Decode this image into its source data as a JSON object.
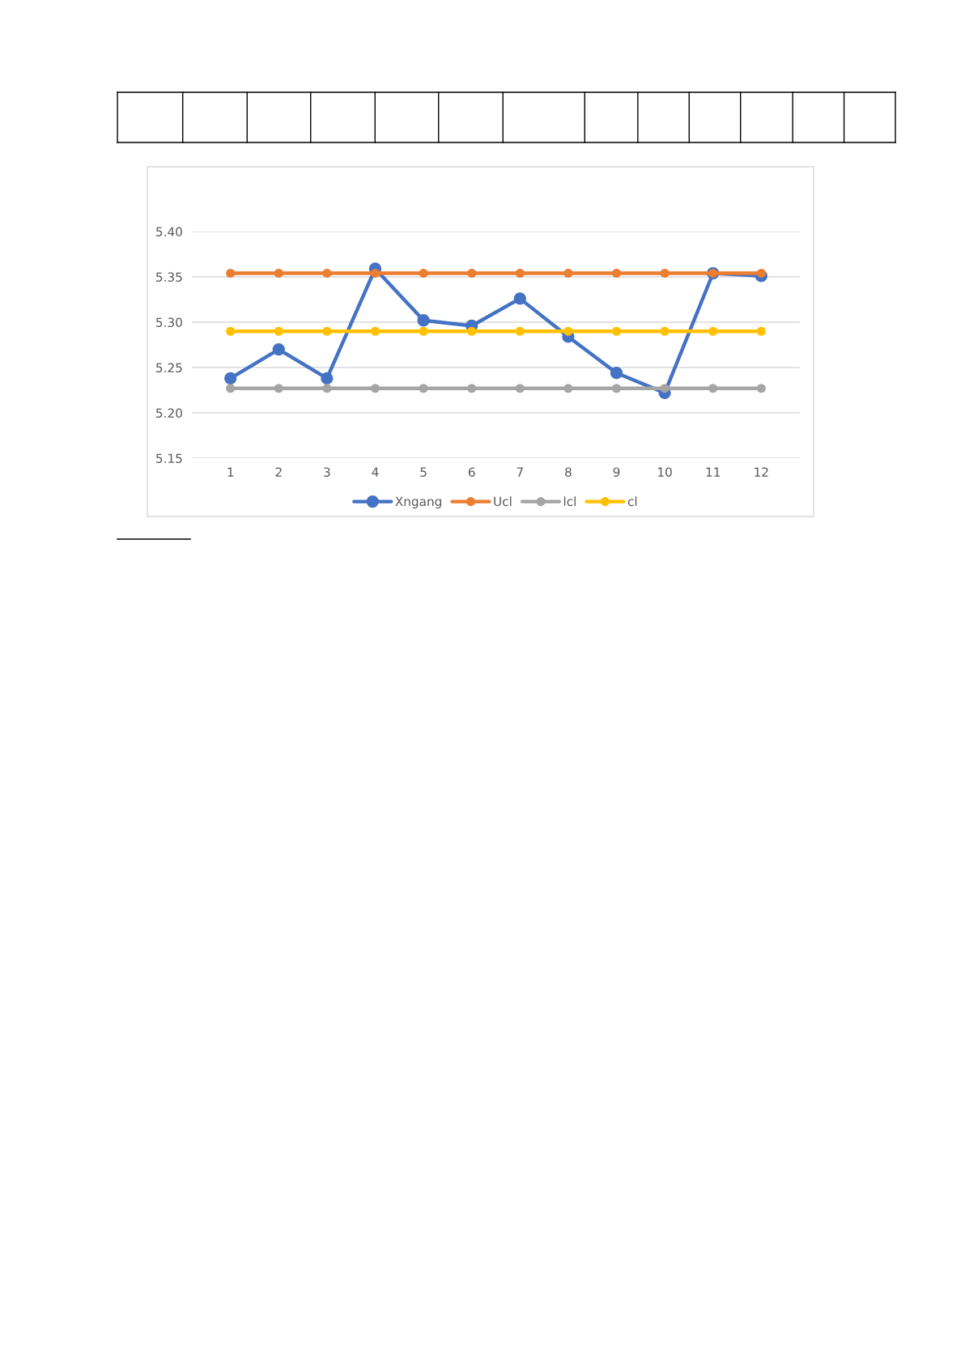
{
  "chart_data": {
    "type": "line",
    "categories": [
      "1",
      "2",
      "3",
      "4",
      "5",
      "6",
      "7",
      "8",
      "9",
      "10",
      "11",
      "12"
    ],
    "series": [
      {
        "name": "Xngang",
        "color": "#4472c4",
        "values": [
          5.238,
          5.27,
          5.238,
          5.359,
          5.302,
          5.296,
          5.326,
          5.284,
          5.244,
          5.222,
          5.354,
          5.351
        ]
      },
      {
        "name": "Ucl",
        "color": "#ed7d31",
        "values": [
          5.354,
          5.354,
          5.354,
          5.354,
          5.354,
          5.354,
          5.354,
          5.354,
          5.354,
          5.354,
          5.354,
          5.354
        ]
      },
      {
        "name": "lcl",
        "color": "#a5a5a5",
        "values": [
          5.227,
          5.227,
          5.227,
          5.227,
          5.227,
          5.227,
          5.227,
          5.227,
          5.227,
          5.227,
          5.227,
          5.227
        ]
      },
      {
        "name": "cl",
        "color": "#ffc000",
        "values": [
          5.29,
          5.29,
          5.29,
          5.29,
          5.29,
          5.29,
          5.29,
          5.29,
          5.29,
          5.29,
          5.29,
          5.29
        ]
      }
    ],
    "ylim": [
      5.15,
      5.4
    ],
    "yticks": [
      {
        "value": 5.15,
        "label": "5.15"
      },
      {
        "value": 5.2,
        "label": "5.20"
      },
      {
        "value": 5.25,
        "label": "5.25"
      },
      {
        "value": 5.3,
        "label": "5.30"
      },
      {
        "value": 5.35,
        "label": "5.35"
      },
      {
        "value": 5.4,
        "label": "5.40"
      }
    ],
    "grid": "y",
    "legend": "bottom",
    "marker": "circle",
    "line_style": "solid"
  }
}
